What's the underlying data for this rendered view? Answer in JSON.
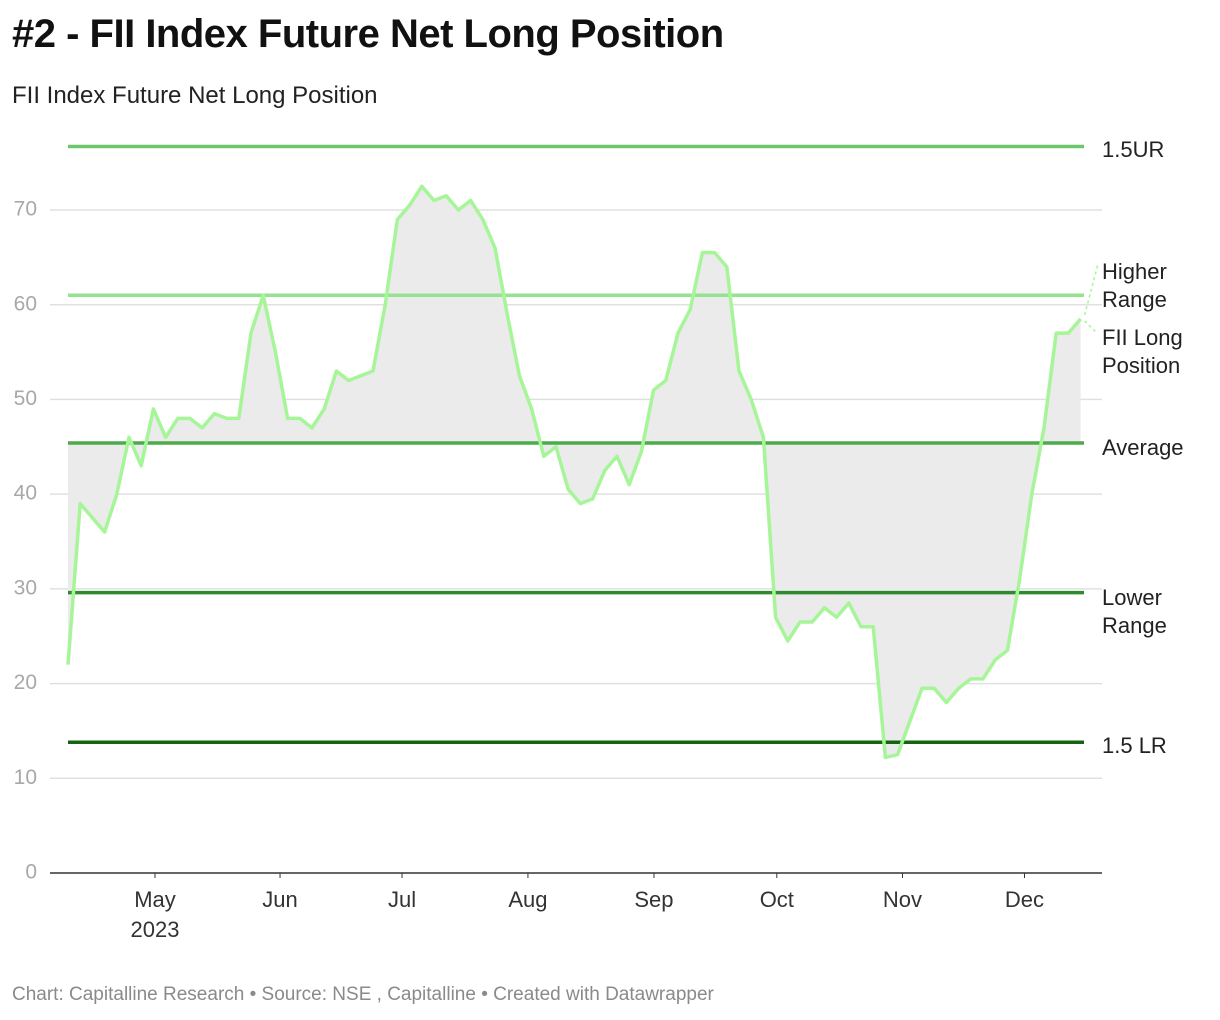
{
  "chart_data": {
    "type": "line",
    "title": "#2 - FII Index Future Net Long Position",
    "subtitle": "FII Index Future Net Long Position",
    "footer": "Chart: Capitalline Research • Source: NSE , Capitalline • Created with Datawrapper",
    "categories": [
      null,
      null,
      null,
      null,
      null,
      null,
      null,
      null,
      null,
      null,
      null,
      null,
      null,
      null,
      null,
      null,
      null,
      null,
      null,
      null,
      null,
      null,
      null,
      null,
      null,
      null,
      null,
      null,
      null,
      null,
      null,
      null,
      null,
      null,
      null,
      null,
      null,
      null,
      null,
      null,
      null,
      null,
      null,
      null,
      null,
      null,
      null,
      null,
      null,
      null,
      null,
      null,
      null,
      null,
      null,
      null,
      null,
      null,
      null,
      null,
      null,
      null,
      null,
      null,
      null,
      null,
      null,
      null,
      null,
      null,
      null,
      null,
      null,
      null,
      null,
      null,
      null,
      null,
      null,
      null,
      null,
      null,
      null,
      null
    ],
    "series": [
      {
        "name": "FII Long Position",
        "color": "#a6f598",
        "values": [
          22,
          39,
          37.5,
          36,
          40,
          46,
          43,
          49,
          46,
          48,
          48,
          47,
          48.5,
          48,
          48,
          57,
          61,
          55,
          48,
          48,
          47,
          49,
          53,
          52,
          52.5,
          53,
          60,
          69,
          70.5,
          72.5,
          71,
          71.5,
          70,
          71,
          69,
          66,
          59,
          52.5,
          49,
          44,
          45,
          40.5,
          39,
          39.5,
          42.5,
          44,
          41,
          44.5,
          51,
          52,
          57,
          59.5,
          65.5,
          65.5,
          64,
          53,
          50,
          46,
          27,
          24.5,
          26.5,
          26.5,
          28,
          27,
          28.5,
          26,
          26,
          12.2,
          12.5,
          16,
          19.5,
          19.5,
          18,
          19.5,
          20.5,
          20.5,
          22.5,
          23.5,
          31,
          40,
          47,
          57,
          57,
          58.5
        ]
      }
    ],
    "reference_lines": [
      {
        "label": "1.5UR",
        "value": 76.7,
        "color": "#6cc66a"
      },
      {
        "label": "Higher Range",
        "value": 61,
        "color": "#95e391"
      },
      {
        "label": "Average",
        "value": 45.4,
        "color": "#4caa4a"
      },
      {
        "label": "Lower Range",
        "value": 29.6,
        "color": "#2f8a2f"
      },
      {
        "label": "1.5 LR",
        "value": 13.8,
        "color": "#13650f"
      }
    ],
    "fill_between": "Average",
    "ylim": [
      0,
      80
    ],
    "yticks": [
      0,
      10,
      20,
      30,
      40,
      50,
      60,
      70
    ],
    "xticks": [
      {
        "value": 7.13,
        "label": "May",
        "sublabel": "2023"
      },
      {
        "value": 17.38,
        "label": "Jun"
      },
      {
        "value": 27.38,
        "label": "Jul"
      },
      {
        "value": 37.7,
        "label": "Aug"
      },
      {
        "value": 48.03,
        "label": "Sep"
      },
      {
        "value": 58.1,
        "label": "Oct"
      },
      {
        "value": 68.4,
        "label": "Nov"
      },
      {
        "value": 78.4,
        "label": "Dec"
      }
    ],
    "grid": true
  }
}
